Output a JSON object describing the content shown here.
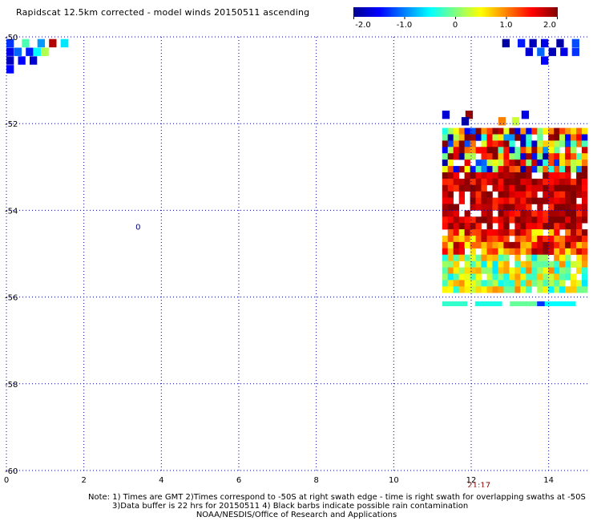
{
  "header": {
    "title": "Rapidscat 12.5km corrected - model winds 20150511 ascending"
  },
  "colorbar": {
    "tick_labels": [
      "-2.0",
      "-1.0",
      "0",
      "1.0",
      "2.0"
    ],
    "range": [
      -2.0,
      2.0
    ],
    "colors": [
      "#000090",
      "#0000ff",
      "#0080ff",
      "#00ffff",
      "#80ff80",
      "#ffff00",
      "#ff8000",
      "#ff0000",
      "#800000"
    ]
  },
  "footer": {
    "note_line1": "Note: 1) Times are GMT 2)Times correspond to -50S at right swath edge - time is right swath for overlapping swaths at -50S",
    "note_line2": "3)Data buffer is 22 hrs for 20150511 4) Black barbs indicate possible rain contamination",
    "note_line3": "NOAA/NESDIS/Office of Research and Applications"
  },
  "chart_data": {
    "type": "heatmap",
    "title": "Rapidscat 12.5km corrected - model winds 20150511 ascending",
    "xlabel": "",
    "ylabel": "",
    "xlim": [
      0,
      15
    ],
    "ylim": [
      -60,
      -50
    ],
    "x_ticks": [
      0,
      2,
      4,
      6,
      8,
      10,
      12,
      14
    ],
    "x_tick_labels": [
      "0",
      "2",
      "4",
      "6",
      "8",
      "10",
      "12",
      "14"
    ],
    "y_ticks": [
      -50,
      -52,
      -54,
      -56,
      -58,
      -60
    ],
    "y_tick_labels": [
      "-50",
      "-52",
      "-54",
      "-56",
      "-58",
      "-60"
    ],
    "grid": true,
    "value_range": [
      -2.0,
      2.0
    ],
    "annotations": [
      {
        "text": "21:17",
        "x": 12.2,
        "y": -60.4,
        "color": "#800000"
      },
      {
        "text": "0",
        "x": 3.4,
        "y": -54.45,
        "color": "#000080"
      }
    ],
    "cells": [
      {
        "x": 0.0,
        "y": -50.05,
        "v": -1.3
      },
      {
        "x": 0.4,
        "y": -50.05,
        "v": -0.2
      },
      {
        "x": 0.8,
        "y": -50.05,
        "v": -0.9
      },
      {
        "x": 1.1,
        "y": -50.05,
        "v": 1.8
      },
      {
        "x": 1.4,
        "y": -50.05,
        "v": -0.6
      },
      {
        "x": 0.0,
        "y": -50.25,
        "v": -1.6
      },
      {
        "x": 0.2,
        "y": -50.25,
        "v": -1.1
      },
      {
        "x": 0.5,
        "y": -50.25,
        "v": -1.4
      },
      {
        "x": 0.7,
        "y": -50.25,
        "v": -0.5
      },
      {
        "x": 0.9,
        "y": -50.25,
        "v": 0.2
      },
      {
        "x": 0.0,
        "y": -50.45,
        "v": -1.8
      },
      {
        "x": 0.3,
        "y": -50.45,
        "v": -1.5
      },
      {
        "x": 0.6,
        "y": -50.45,
        "v": -1.7
      },
      {
        "x": 0.0,
        "y": -50.65,
        "v": -1.5
      },
      {
        "x": 12.8,
        "y": -50.05,
        "v": -1.9
      },
      {
        "x": 13.2,
        "y": -50.05,
        "v": -1.4
      },
      {
        "x": 13.5,
        "y": -50.05,
        "v": -1.8
      },
      {
        "x": 13.8,
        "y": -50.05,
        "v": -1.6
      },
      {
        "x": 14.2,
        "y": -50.05,
        "v": -1.9
      },
      {
        "x": 14.6,
        "y": -50.05,
        "v": -1.2
      },
      {
        "x": 13.4,
        "y": -50.25,
        "v": -1.7
      },
      {
        "x": 13.7,
        "y": -50.25,
        "v": -1.1
      },
      {
        "x": 14.0,
        "y": -50.25,
        "v": -1.8
      },
      {
        "x": 14.3,
        "y": -50.25,
        "v": -1.6
      },
      {
        "x": 14.6,
        "y": -50.25,
        "v": -1.3
      },
      {
        "x": 13.8,
        "y": -50.45,
        "v": -1.5
      },
      {
        "x": 11.25,
        "y": -51.7,
        "v": -1.7
      },
      {
        "x": 11.85,
        "y": -51.7,
        "v": 1.9
      },
      {
        "x": 13.3,
        "y": -51.7,
        "v": -1.6
      },
      {
        "x": 12.7,
        "y": -51.85,
        "v": 1.0
      },
      {
        "x": 13.05,
        "y": -51.85,
        "v": 0.3
      },
      {
        "x": 11.75,
        "y": -51.85,
        "v": -1.9
      }
    ],
    "swath": {
      "x0": 11.25,
      "x1": 15.0,
      "y0": -52.1,
      "y1": -55.9,
      "cols": 26,
      "rows": 26
    },
    "strip": {
      "y": -56.1,
      "segments": [
        [
          11.25,
          11.9,
          -0.3
        ],
        [
          12.1,
          12.8,
          -0.4
        ],
        [
          13.0,
          13.7,
          -0.1
        ],
        [
          13.7,
          13.9,
          -1.3
        ],
        [
          13.9,
          14.7,
          -0.5
        ]
      ]
    }
  }
}
